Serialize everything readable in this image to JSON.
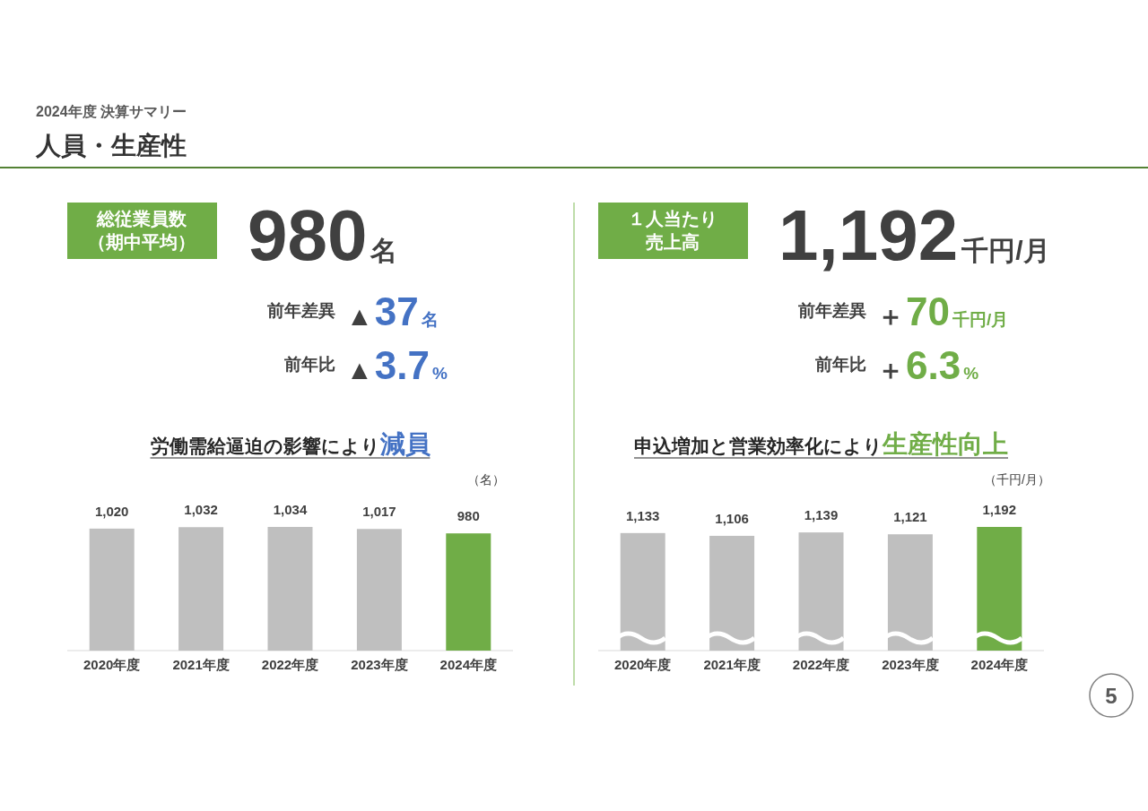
{
  "chart_data": [
    {
      "type": "other",
      "title": "人員・生産性",
      "subtitle": "2024年度 決算サマリー",
      "annotations": [
        "5"
      ]
    },
    {
      "type": "other",
      "title": "総従業員数",
      "subtitle": "（期中平均）",
      "annotations": [
        "980",
        "名",
        "前年差異",
        "▲",
        "37",
        "名",
        "前年比",
        "▲",
        "3.7",
        "%"
      ]
    },
    {
      "type": "other",
      "title": "１人当たり",
      "subtitle": "売上高",
      "annotations": [
        "1,192",
        "千円/月",
        "前年差異",
        "＋",
        "70",
        "千円/月",
        "前年比",
        "＋",
        "6.3",
        "%"
      ]
    },
    {
      "type": "bar",
      "title": "労働需給逼迫の影響により",
      "subtitle": "減員",
      "ylabel": "（名）",
      "categories": [
        "2020年度",
        "2021年度",
        "2022年度",
        "2023年度",
        "2024年度"
      ],
      "values": [
        1020,
        1032,
        1034,
        1017,
        980
      ],
      "colors": [
        "#bfbfbf",
        "#bfbfbf",
        "#bfbfbf",
        "#bfbfbf",
        "#70ad47"
      ],
      "value_labels": [
        "1,020",
        "1,032",
        "1,034",
        "1,017",
        "980"
      ]
    },
    {
      "type": "bar",
      "title": "申込増加と営業効率化により",
      "subtitle": "生産性向上",
      "ylabel": "（千円/月）",
      "categories": [
        "2020年度",
        "2021年度",
        "2022年度",
        "2023年度",
        "2024年度"
      ],
      "values": [
        1133,
        1106,
        1139,
        1121,
        1192
      ],
      "colors": [
        "#bfbfbf",
        "#bfbfbf",
        "#bfbfbf",
        "#bfbfbf",
        "#70ad47"
      ],
      "value_labels": [
        "1,133",
        "1,106",
        "1,139",
        "1,121",
        "1,192"
      ]
    }
  ]
}
